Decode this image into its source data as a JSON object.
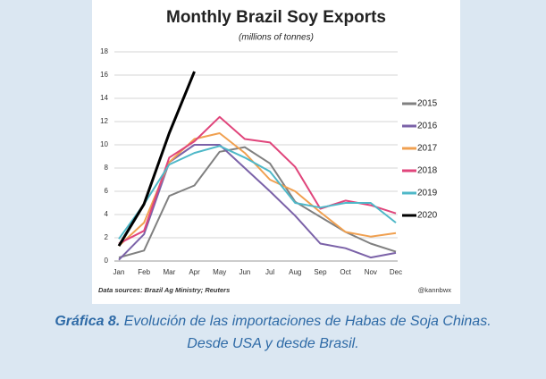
{
  "chart_data": {
    "type": "line",
    "title": "Monthly Brazil Soy Exports",
    "subtitle": "(millions of tonnes)",
    "categories": [
      "Jan",
      "Feb",
      "Mar",
      "Apr",
      "May",
      "Jun",
      "Jul",
      "Aug",
      "Sep",
      "Oct",
      "Nov",
      "Dec"
    ],
    "series": [
      {
        "name": "2015",
        "color": "#808080",
        "values": [
          0.3,
          0.9,
          5.6,
          6.5,
          9.4,
          9.8,
          8.4,
          5.1,
          3.8,
          2.5,
          1.5,
          0.8
        ]
      },
      {
        "name": "2016",
        "color": "#7b62a8",
        "values": [
          0.1,
          2.3,
          8.5,
          10.0,
          10.0,
          8.0,
          6.0,
          3.9,
          1.5,
          1.1,
          0.3,
          0.7
        ]
      },
      {
        "name": "2017",
        "color": "#f0a050",
        "values": [
          1.3,
          3.3,
          8.5,
          10.5,
          11.0,
          9.3,
          7.0,
          6.0,
          4.2,
          2.5,
          2.1,
          2.4
        ]
      },
      {
        "name": "2018",
        "color": "#e0457b",
        "values": [
          1.5,
          2.6,
          8.9,
          10.3,
          12.4,
          10.5,
          10.2,
          8.1,
          4.5,
          5.2,
          4.8,
          4.1
        ]
      },
      {
        "name": "2019",
        "color": "#4fb8c8",
        "values": [
          1.9,
          4.9,
          8.3,
          9.3,
          9.9,
          8.9,
          7.7,
          5.0,
          4.6,
          5.0,
          5.0,
          3.3
        ]
      },
      {
        "name": "2020",
        "color": "#000000",
        "values": [
          1.3,
          4.9,
          11.0,
          16.3,
          null,
          null,
          null,
          null,
          null,
          null,
          null,
          null
        ]
      }
    ],
    "ylim": [
      0,
      18
    ],
    "yticks": [
      0,
      2,
      4,
      6,
      8,
      10,
      12,
      14,
      16,
      18
    ],
    "grid": true,
    "legend": "right",
    "source": "Data sources: Brazil Ag Ministry; Reuters",
    "credit": "@kannbwx"
  },
  "caption": {
    "label": "Gráfica 8.",
    "lines": [
      "Evolución de las importaciones de Habas de Soja Chinas.",
      "Desde USA y desde Brasil."
    ]
  }
}
